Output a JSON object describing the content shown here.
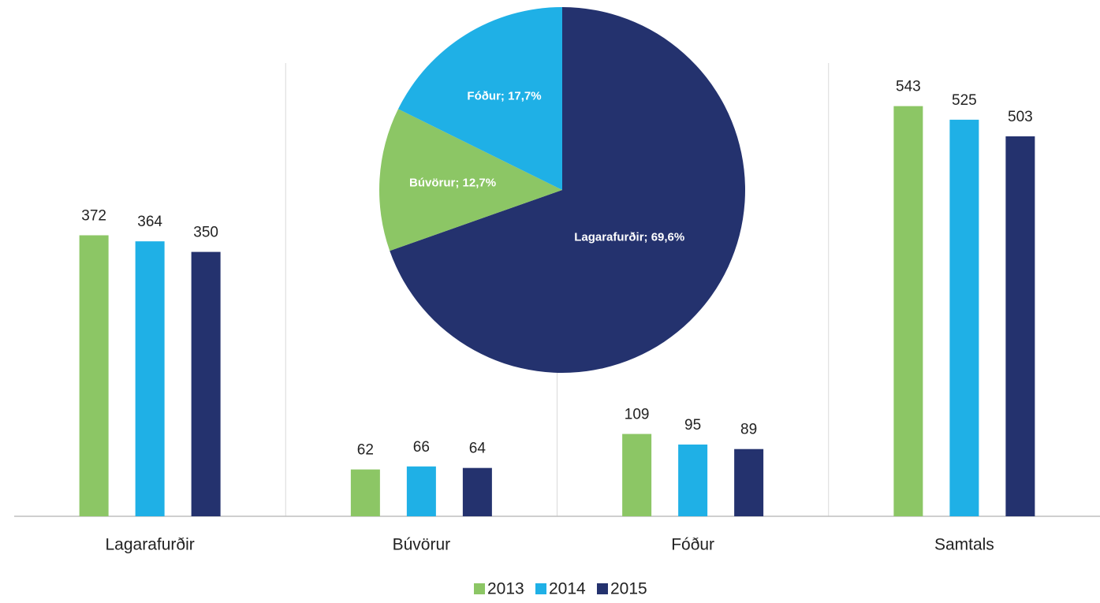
{
  "chart_data": [
    {
      "type": "bar",
      "categories": [
        "Lagarafurðir",
        "Búvörur",
        "Fóður",
        "Samtals"
      ],
      "series": [
        {
          "name": "2013",
          "color": "#8cc665",
          "values": [
            372,
            62,
            109,
            543
          ]
        },
        {
          "name": "2014",
          "color": "#1fb0e6",
          "values": [
            364,
            66,
            95,
            525
          ]
        },
        {
          "name": "2015",
          "color": "#24326e",
          "values": [
            350,
            64,
            89,
            503
          ]
        }
      ],
      "ylim": [
        0,
        600
      ],
      "legend": "bottom"
    },
    {
      "type": "pie",
      "categories": [
        "Lagarafurðir",
        "Búvörur",
        "Fóður"
      ],
      "values": [
        69.6,
        12.7,
        17.7
      ],
      "value_labels": [
        "Lagarafurðir; 69,6%",
        "Búvörur; 12,7%",
        "Fóður; 17,7%"
      ],
      "colors": [
        "#24326e",
        "#8cc665",
        "#1fb0e6"
      ]
    }
  ]
}
